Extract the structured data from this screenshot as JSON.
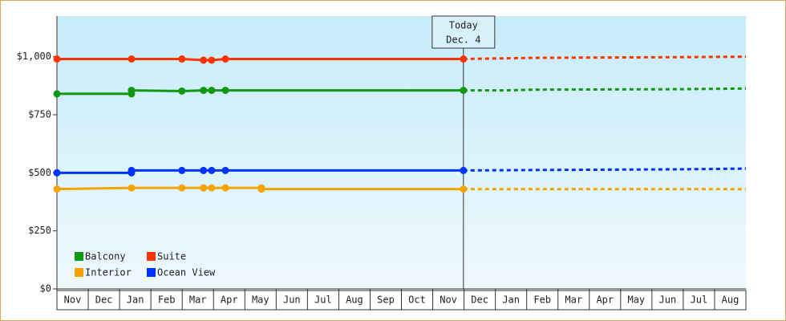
{
  "chart_data": {
    "type": "line",
    "categories": [
      "Nov",
      "Dec",
      "Jan",
      "Feb",
      "Mar",
      "Apr",
      "May",
      "Jun",
      "Jul",
      "Aug",
      "Sep",
      "Oct",
      "Nov",
      "Dec",
      "Jan",
      "Feb",
      "Mar",
      "Apr",
      "May",
      "Jun",
      "Jul",
      "Aug"
    ],
    "xlim": [
      0,
      22
    ],
    "ylim": [
      0,
      1175
    ],
    "yticks": [
      {
        "value": 0,
        "label": "$0"
      },
      {
        "value": 250,
        "label": "$250"
      },
      {
        "value": 500,
        "label": "$500"
      },
      {
        "value": 750,
        "label": "$750"
      },
      {
        "value": 1000,
        "label": "$1,000"
      }
    ],
    "today": {
      "x": 12.98,
      "label": [
        "Today",
        "Dec. 4"
      ]
    },
    "legend": "lower left",
    "series": [
      {
        "name": "Balcony",
        "color": "#119911",
        "x": [
          0,
          2.38,
          2.38,
          3.99,
          4.68,
          4.94,
          5.38,
          12.98
        ],
        "values": [
          840,
          840,
          855,
          852,
          855,
          855,
          855,
          855
        ],
        "forecast": {
          "x": [
            12.98,
            14.31,
            15.21,
            19.82,
            22
          ],
          "values": [
            855,
            855,
            858,
            860,
            863
          ]
        }
      },
      {
        "name": "Suite",
        "color": "#ff3300",
        "x": [
          0,
          2.38,
          3.99,
          4.68,
          4.94,
          5.38,
          12.98
        ],
        "values": [
          990,
          990,
          990,
          985,
          985,
          990,
          990
        ],
        "forecast": {
          "x": [
            12.98,
            15.21,
            19.82,
            22
          ],
          "values": [
            990,
            995,
            998,
            1000
          ]
        }
      },
      {
        "name": "Interior",
        "color": "#f5a300",
        "x": [
          0,
          2.38,
          3.99,
          4.68,
          4.94,
          5.38,
          6.53,
          6.53,
          12.98
        ],
        "values": [
          430,
          435,
          435,
          435,
          435,
          435,
          435,
          430,
          430
        ],
        "forecast": {
          "x": [
            12.98,
            22
          ],
          "values": [
            430,
            430
          ]
        }
      },
      {
        "name": "Ocean View",
        "color": "#0033ff",
        "x": [
          0,
          2.38,
          2.38,
          3.99,
          4.68,
          4.94,
          5.38,
          12.98
        ],
        "values": [
          500,
          500,
          510,
          510,
          510,
          510,
          510,
          510
        ],
        "forecast": {
          "x": [
            12.98,
            15.21,
            19.82,
            22
          ],
          "values": [
            510,
            512,
            515,
            518
          ]
        }
      }
    ]
  }
}
